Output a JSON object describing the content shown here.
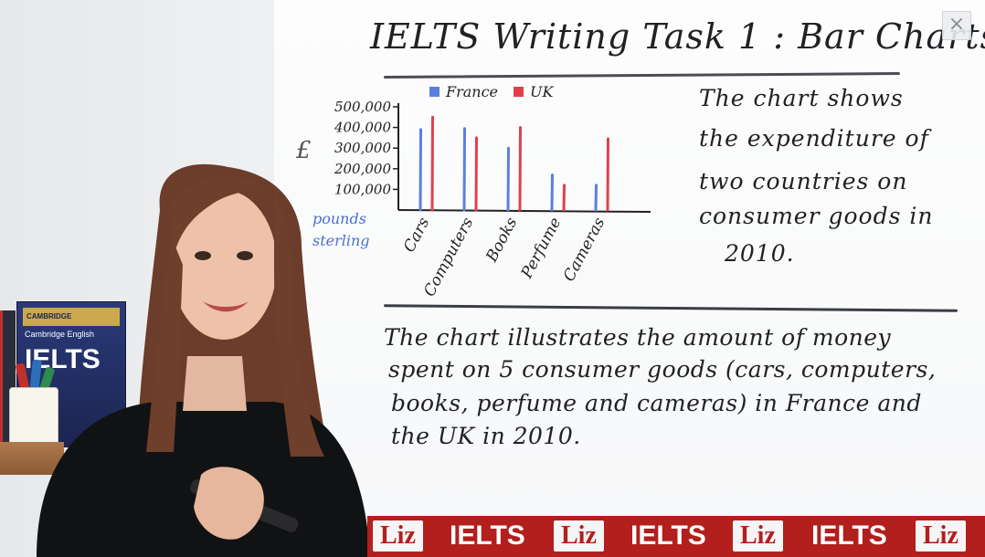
{
  "board": {
    "title": "IELTS Writing Task 1 : Bar Charts",
    "side_text": [
      "The chart shows",
      "the expenditure of",
      "two countries on",
      "consumer goods in",
      "2010."
    ],
    "paragraph": [
      "The chart illustrates the amount of money",
      "spent on 5 consumer goods (cars, computers,",
      "books, perfume and cameras) in France and",
      "the UK in 2010."
    ],
    "pound_sign": "£",
    "pounds_label": [
      "pounds",
      "sterling"
    ]
  },
  "chart_data": {
    "type": "bar",
    "title": "",
    "ylabel": "£",
    "categories": [
      "Cars",
      "Computers",
      "Books",
      "Perfume",
      "Cameras"
    ],
    "y_ticks": [
      "500,000",
      "400,000",
      "300,000",
      "200,000",
      "100,000"
    ],
    "ylim": [
      0,
      500000
    ],
    "legend_position": "top",
    "colors": {
      "France": "#5b7fe0",
      "UK": "#e0404c"
    },
    "series": [
      {
        "name": "France",
        "values": [
          390000,
          395000,
          300000,
          170000,
          120000
        ]
      },
      {
        "name": "UK",
        "values": [
          450000,
          350000,
          400000,
          120000,
          345000
        ]
      }
    ]
  },
  "props": {
    "book_publisher": "CAMBRIDGE",
    "book_series": "Cambridge English",
    "book_title": "IELTS"
  },
  "banner": {
    "items": [
      "Liz",
      "IELTS",
      "Liz",
      "IELTS",
      "Liz",
      "IELTS",
      "Liz"
    ],
    "color": "#b21f1d"
  },
  "controls": {
    "close_label": "×"
  }
}
